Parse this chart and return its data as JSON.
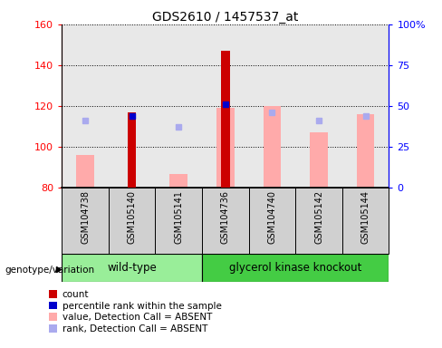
{
  "title": "GDS2610 / 1457537_at",
  "samples": [
    "GSM104738",
    "GSM105140",
    "GSM105141",
    "GSM104736",
    "GSM104740",
    "GSM105142",
    "GSM105144"
  ],
  "wt_count": 3,
  "ko_count": 4,
  "ylim_left": [
    80,
    160
  ],
  "ylim_right": [
    0,
    100
  ],
  "yticks_left": [
    80,
    100,
    120,
    140,
    160
  ],
  "yticks_right": [
    0,
    25,
    50,
    75,
    100
  ],
  "yticklabels_right": [
    "0",
    "25",
    "50",
    "75",
    "100%"
  ],
  "red_bars": [
    null,
    117,
    null,
    147,
    null,
    null,
    null
  ],
  "blue_squares": [
    null,
    115,
    null,
    121,
    null,
    null,
    null
  ],
  "pink_bars": [
    96,
    null,
    87,
    119,
    120,
    107,
    116
  ],
  "lavender_squares": [
    113,
    null,
    110,
    null,
    117,
    113,
    115
  ],
  "red_color": "#cc0000",
  "blue_color": "#0000cc",
  "pink_color": "#ffaaaa",
  "lavender_color": "#aaaaee",
  "wt_color": "#99ee99",
  "ko_color": "#44cc44",
  "sample_bg_color": "#d0d0d0",
  "plot_bg_color": "#e8e8e8",
  "legend_labels": [
    "count",
    "percentile rank within the sample",
    "value, Detection Call = ABSENT",
    "rank, Detection Call = ABSENT"
  ],
  "legend_colors": [
    "#cc0000",
    "#0000cc",
    "#ffaaaa",
    "#aaaaee"
  ],
  "wt_label": "wild-type",
  "ko_label": "glycerol kinase knockout",
  "genotype_label": "genotype/variation"
}
